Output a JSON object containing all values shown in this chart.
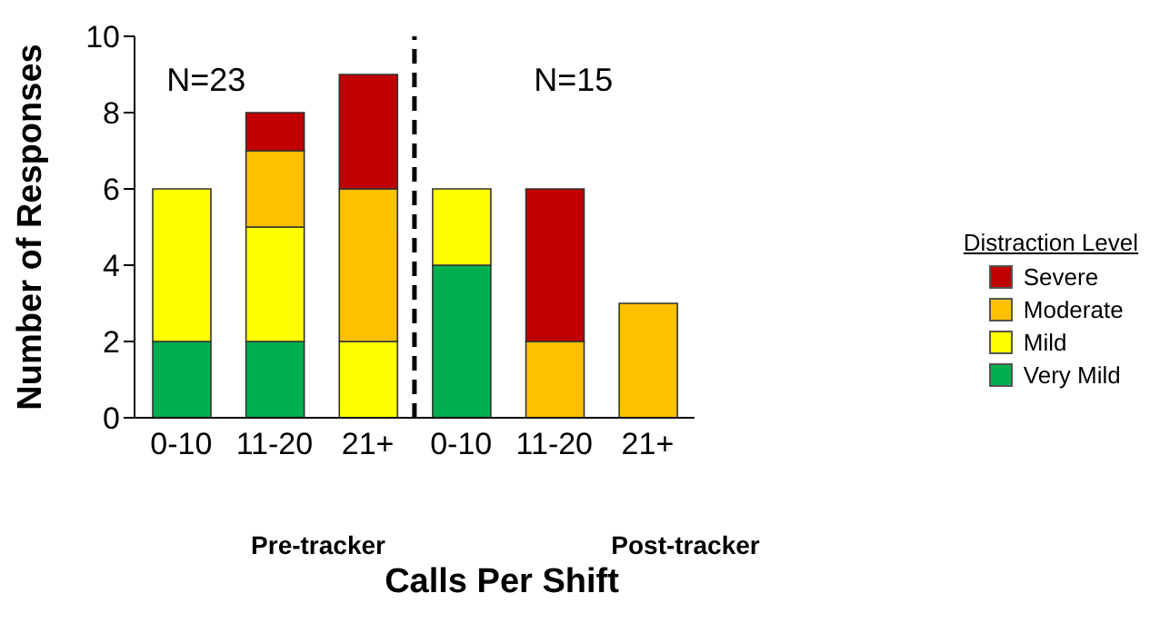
{
  "chart_data": {
    "type": "bar",
    "stacked": true,
    "xlabel": "Calls Per Shift",
    "ylabel": "Number of Responses",
    "legend_title": "Distraction Level",
    "legend": "right",
    "categories": [
      "0-10",
      "11-20",
      "21+",
      "0-10",
      "11-20",
      "21+"
    ],
    "series": [
      {
        "name": "Very Mild",
        "color": "#00b050",
        "values": [
          2,
          2,
          0,
          4,
          0,
          0
        ]
      },
      {
        "name": "Mild",
        "color": "#ffff00",
        "values": [
          4,
          3,
          2,
          2,
          0,
          0
        ]
      },
      {
        "name": "Moderate",
        "color": "#ffc000",
        "values": [
          0,
          2,
          4,
          0,
          2,
          3
        ]
      },
      {
        "name": "Severe",
        "color": "#c00000",
        "values": [
          0,
          1,
          3,
          0,
          4,
          0
        ]
      }
    ],
    "ylim": [
      0,
      10
    ],
    "yticks": [
      0,
      2,
      4,
      6,
      8,
      10
    ],
    "grid": false,
    "annotations": [
      "N=23",
      "N=15",
      "Pre-tracker",
      "Post-tracker"
    ]
  }
}
